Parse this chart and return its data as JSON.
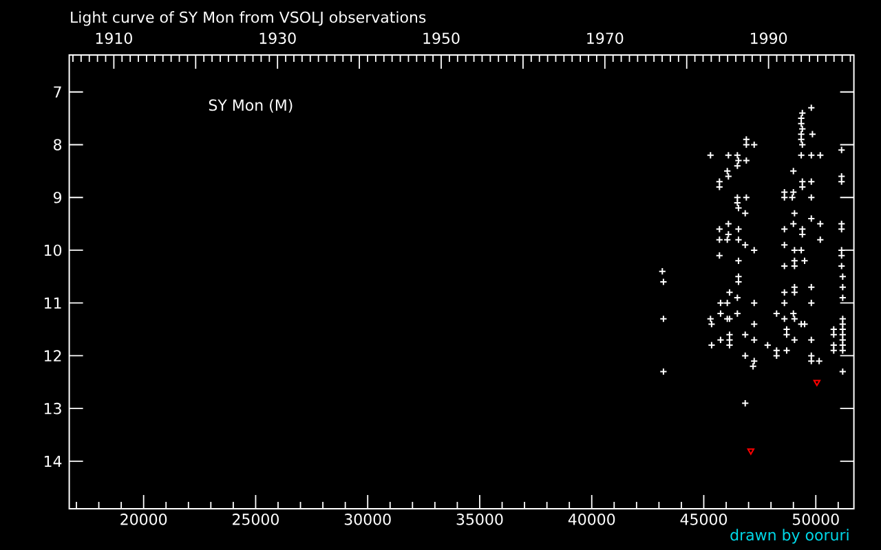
{
  "chart_data": {
    "type": "scatter",
    "title": "Light curve of SY Mon from VSOLJ observations",
    "annotations": [
      "SY Mon (M)",
      "drawn by ooruri"
    ],
    "xlim": [
      16680,
      51700
    ],
    "xticks": [
      20000,
      25000,
      30000,
      35000,
      40000,
      45000,
      50000
    ],
    "x2lim": [
      1904.55,
      2000.43
    ],
    "x2ticks": [
      1910,
      {
        "value": 1920,
        "label": null
      },
      1930,
      {
        "value": 1940,
        "label": null
      },
      1950,
      {
        "value": 1960,
        "label": null
      },
      1970,
      {
        "value": 1980,
        "label": null
      },
      1990
    ],
    "ylim": [
      14.9,
      6.3
    ],
    "yticks": [
      7,
      8,
      9,
      10,
      11,
      12,
      13,
      14
    ],
    "marker": "cross",
    "series": [
      {
        "color": "#ffffff",
        "x": [
          49800,
          49400,
          49350,
          49350,
          49400,
          49350,
          49850,
          49350,
          49400,
          46900,
          46900,
          47250,
          45300,
          46100,
          46500,
          49350,
          49800,
          50200,
          51150,
          46550,
          46900,
          46050,
          46500,
          46100,
          49000,
          45700,
          45700,
          49400,
          49400,
          49800,
          51150,
          51150,
          46500,
          46900,
          46500,
          46550,
          46850,
          48600,
          49000,
          48600,
          48950,
          49800,
          49050,
          49800,
          46100,
          45700,
          46550,
          46100,
          49000,
          50200,
          48600,
          49400,
          49400,
          51150,
          51150,
          45700,
          46050,
          46550,
          46850,
          48600,
          50200,
          47250,
          49050,
          49350,
          51150,
          51150,
          45700,
          46550,
          48600,
          49050,
          49050,
          49500,
          51150,
          43150,
          43200,
          46550,
          46550,
          51200,
          46150,
          45750,
          46050,
          46500,
          47250,
          48600,
          49050,
          49050,
          49800,
          48600,
          49800,
          51200,
          51200,
          43200,
          45300,
          45350,
          45750,
          46050,
          46150,
          46500,
          47250,
          48250,
          48600,
          49000,
          49050,
          49350,
          49500,
          51200,
          51200,
          51200,
          51200,
          51200,
          51200,
          51200,
          50800,
          50800,
          50800,
          50800,
          46150,
          46150,
          46150,
          45350,
          45750,
          46850,
          47250,
          47850,
          48700,
          48700,
          49050,
          49800,
          48250,
          48250,
          48700,
          46850,
          47250,
          47200,
          49800,
          49800,
          50150,
          43200,
          51200,
          46850
        ],
        "values": [
          7.3,
          7.4,
          7.5,
          7.6,
          7.7,
          7.8,
          7.8,
          7.9,
          8.0,
          7.9,
          8.0,
          8.0,
          8.2,
          8.2,
          8.2,
          8.2,
          8.2,
          8.2,
          8.1,
          8.3,
          8.3,
          8.5,
          8.4,
          8.6,
          8.5,
          8.7,
          8.8,
          8.7,
          8.8,
          8.7,
          8.6,
          8.7,
          9.0,
          9.0,
          9.1,
          9.2,
          9.3,
          8.9,
          8.9,
          9.0,
          9.0,
          9.0,
          9.3,
          9.4,
          9.5,
          9.6,
          9.6,
          9.7,
          9.5,
          9.5,
          9.6,
          9.6,
          9.7,
          9.5,
          9.6,
          9.8,
          9.8,
          9.8,
          9.9,
          9.9,
          9.8,
          10.0,
          10.0,
          10.0,
          10.0,
          10.1,
          10.1,
          10.2,
          10.3,
          10.2,
          10.3,
          10.2,
          10.3,
          10.4,
          10.6,
          10.5,
          10.6,
          10.5,
          10.8,
          11.0,
          11.0,
          10.9,
          11.0,
          10.8,
          10.7,
          10.8,
          10.7,
          11.0,
          11.0,
          10.7,
          10.9,
          11.3,
          11.3,
          11.4,
          11.2,
          11.3,
          11.3,
          11.2,
          11.4,
          11.2,
          11.3,
          11.2,
          11.3,
          11.4,
          11.4,
          11.3,
          11.4,
          11.5,
          11.6,
          11.7,
          11.8,
          11.9,
          11.5,
          11.6,
          11.8,
          11.9,
          11.6,
          11.7,
          11.8,
          11.8,
          11.7,
          11.6,
          11.7,
          11.8,
          11.5,
          11.6,
          11.7,
          11.7,
          11.9,
          12.0,
          11.9,
          12.0,
          12.1,
          12.2,
          12.0,
          12.1,
          12.1,
          12.3,
          12.3,
          12.9
        ]
      },
      {
        "color": "#ff0000",
        "marker": "triangle",
        "x": [
          50050,
          47100
        ],
        "values": [
          12.5,
          13.8
        ]
      }
    ]
  }
}
